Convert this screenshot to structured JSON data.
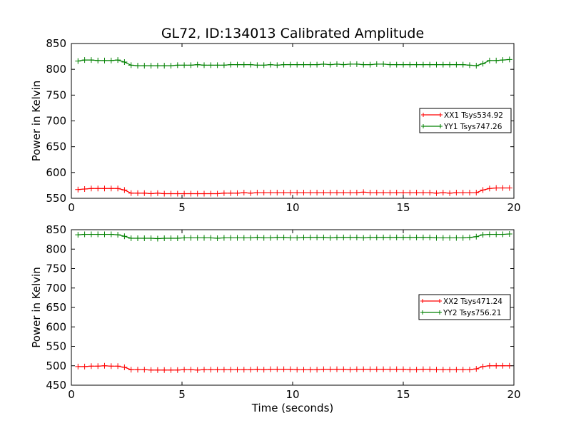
{
  "title": "GL72, ID:134013 Calibrated Amplitude",
  "colors": {
    "red": "#ff0000",
    "green": "#008000",
    "axis": "#000000",
    "background": "#ffffff"
  },
  "chart_data": [
    {
      "type": "line",
      "xlabel": "",
      "ylabel": "Power in Kelvin",
      "xlim": [
        0,
        20
      ],
      "ylim": [
        550,
        850
      ],
      "xticks": [
        "0",
        "5",
        "10",
        "15",
        "20"
      ],
      "yticks": [
        "550",
        "600",
        "650",
        "700",
        "750",
        "800",
        "850"
      ],
      "legend_position": "center-right",
      "grid": false,
      "x": [
        0.3,
        0.6,
        0.9,
        1.2,
        1.5,
        1.8,
        2.1,
        2.4,
        2.7,
        3.0,
        3.3,
        3.6,
        3.9,
        4.2,
        4.5,
        4.8,
        5.1,
        5.4,
        5.7,
        6.0,
        6.3,
        6.6,
        6.9,
        7.2,
        7.5,
        7.8,
        8.1,
        8.4,
        8.7,
        9.0,
        9.3,
        9.6,
        9.9,
        10.2,
        10.5,
        10.8,
        11.1,
        11.4,
        11.7,
        12.0,
        12.3,
        12.6,
        12.9,
        13.2,
        13.5,
        13.8,
        14.1,
        14.4,
        14.7,
        15.0,
        15.3,
        15.6,
        15.9,
        16.2,
        16.5,
        16.8,
        17.1,
        17.4,
        17.7,
        18.0,
        18.3,
        18.6,
        18.9,
        19.2,
        19.5,
        19.8
      ],
      "series": [
        {
          "name": "XX1 Tsys534.92",
          "color": "#ff0000",
          "values": [
            567,
            568,
            569,
            569,
            569,
            569,
            569,
            566,
            560,
            560,
            560,
            559,
            560,
            559,
            559,
            559,
            559,
            559,
            559,
            559,
            559,
            559,
            560,
            560,
            560,
            561,
            560,
            561,
            561,
            561,
            561,
            561,
            561,
            561,
            561,
            561,
            561,
            561,
            561,
            561,
            561,
            561,
            561,
            562,
            561,
            561,
            561,
            561,
            561,
            561,
            561,
            561,
            561,
            561,
            560,
            561,
            560,
            561,
            561,
            561,
            561,
            566,
            569,
            570,
            570,
            570
          ]
        },
        {
          "name": "YY1 Tsys747.26",
          "color": "#008000",
          "values": [
            816,
            818,
            818,
            817,
            817,
            817,
            818,
            814,
            808,
            807,
            807,
            807,
            807,
            807,
            807,
            808,
            808,
            808,
            809,
            808,
            808,
            808,
            808,
            809,
            809,
            809,
            809,
            808,
            808,
            809,
            808,
            809,
            809,
            809,
            809,
            809,
            809,
            810,
            809,
            810,
            809,
            810,
            810,
            809,
            809,
            810,
            810,
            809,
            809,
            809,
            809,
            809,
            809,
            809,
            809,
            809,
            809,
            809,
            809,
            808,
            807,
            811,
            817,
            817,
            818,
            819
          ]
        }
      ]
    },
    {
      "type": "line",
      "xlabel": "Time (seconds)",
      "ylabel": "Power in Kelvin",
      "xlim": [
        0,
        20
      ],
      "ylim": [
        450,
        850
      ],
      "xticks": [
        "0",
        "5",
        "10",
        "15",
        "20"
      ],
      "yticks": [
        "450",
        "500",
        "550",
        "600",
        "650",
        "700",
        "750",
        "800",
        "850"
      ],
      "legend_position": "center-right",
      "grid": false,
      "x": [
        0.3,
        0.6,
        0.9,
        1.2,
        1.5,
        1.8,
        2.1,
        2.4,
        2.7,
        3.0,
        3.3,
        3.6,
        3.9,
        4.2,
        4.5,
        4.8,
        5.1,
        5.4,
        5.7,
        6.0,
        6.3,
        6.6,
        6.9,
        7.2,
        7.5,
        7.8,
        8.1,
        8.4,
        8.7,
        9.0,
        9.3,
        9.6,
        9.9,
        10.2,
        10.5,
        10.8,
        11.1,
        11.4,
        11.7,
        12.0,
        12.3,
        12.6,
        12.9,
        13.2,
        13.5,
        13.8,
        14.1,
        14.4,
        14.7,
        15.0,
        15.3,
        15.6,
        15.9,
        16.2,
        16.5,
        16.8,
        17.1,
        17.4,
        17.7,
        18.0,
        18.3,
        18.6,
        18.9,
        19.2,
        19.5,
        19.8
      ],
      "series": [
        {
          "name": "XX2 Tsys471.24",
          "color": "#ff0000",
          "values": [
            498,
            498,
            499,
            499,
            500,
            499,
            499,
            496,
            490,
            490,
            490,
            489,
            489,
            489,
            489,
            489,
            490,
            490,
            489,
            490,
            490,
            490,
            490,
            490,
            490,
            490,
            490,
            491,
            490,
            491,
            491,
            491,
            491,
            490,
            490,
            490,
            490,
            491,
            491,
            491,
            491,
            490,
            491,
            491,
            491,
            491,
            491,
            491,
            491,
            491,
            490,
            490,
            491,
            491,
            490,
            490,
            490,
            490,
            490,
            490,
            492,
            498,
            500,
            500,
            500,
            500
          ]
        },
        {
          "name": "YY2 Tsys756.21",
          "color": "#008000",
          "values": [
            837,
            838,
            838,
            838,
            838,
            838,
            837,
            833,
            828,
            828,
            828,
            828,
            827,
            828,
            828,
            828,
            829,
            829,
            829,
            829,
            829,
            828,
            829,
            829,
            829,
            829,
            829,
            830,
            829,
            829,
            830,
            830,
            829,
            829,
            830,
            830,
            830,
            830,
            829,
            830,
            830,
            830,
            830,
            829,
            830,
            830,
            830,
            830,
            830,
            830,
            830,
            830,
            830,
            830,
            829,
            829,
            829,
            829,
            829,
            830,
            832,
            837,
            838,
            838,
            838,
            839
          ]
        }
      ]
    }
  ]
}
